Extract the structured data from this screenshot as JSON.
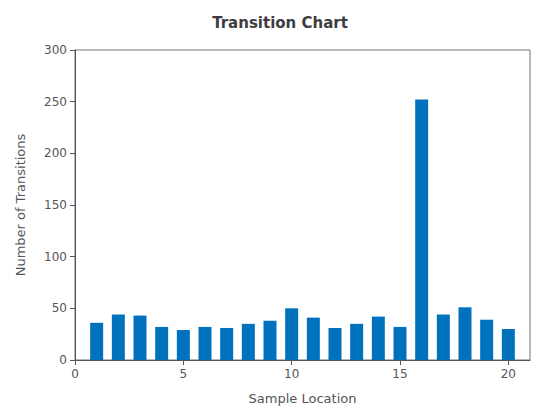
{
  "chart_data": {
    "type": "bar",
    "title": "Transition Chart",
    "xlabel": "Sample Location",
    "ylabel": "Number of Transitions",
    "x": [
      1,
      2,
      3,
      4,
      5,
      6,
      7,
      8,
      9,
      10,
      11,
      12,
      13,
      14,
      15,
      16,
      17,
      18,
      19,
      20
    ],
    "values": [
      36,
      44,
      43,
      32,
      29,
      32,
      31,
      35,
      38,
      50,
      41,
      31,
      35,
      42,
      32,
      252,
      44,
      51,
      39,
      30
    ],
    "color": "#0072BD",
    "xlim": [
      0,
      21
    ],
    "xticks": [
      0,
      5,
      10,
      15,
      20
    ],
    "ylim": [
      0,
      300
    ],
    "yticks": [
      0,
      50,
      100,
      150,
      200,
      250,
      300
    ],
    "grid": false
  }
}
